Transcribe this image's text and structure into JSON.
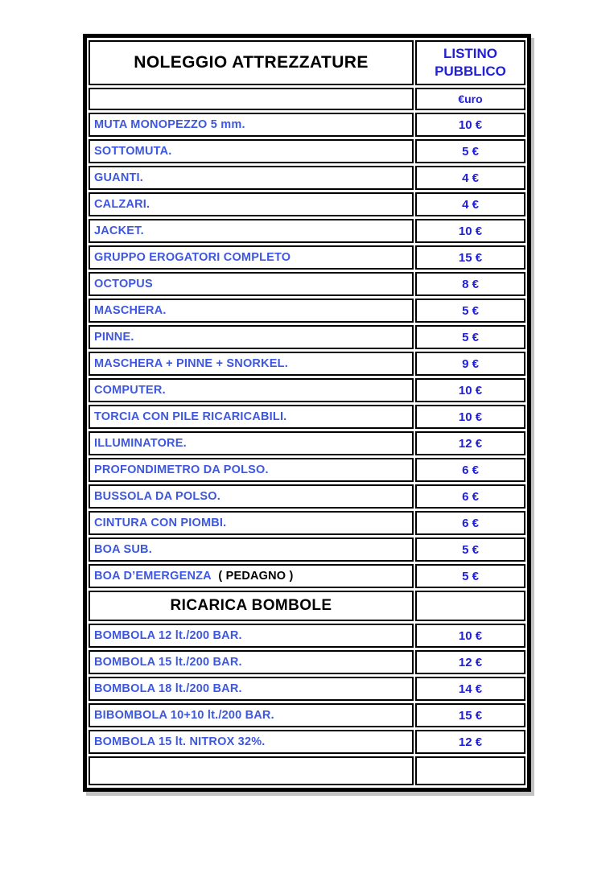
{
  "table": {
    "title": "NOLEGGIO ATTREZZATURE",
    "price_column_title": "LISTINO PUBBLICO",
    "currency_label": "€uro",
    "colors": {
      "label_blue": "#3d57de",
      "value_blue": "#1f1fd8",
      "border_black": "#000000"
    },
    "sections": [
      {
        "title": "",
        "rows": [
          {
            "label": "MUTA MONOPEZZO 5 mm.",
            "price": "10 €"
          },
          {
            "label": "SOTTOMUTA.",
            "price": "5 €"
          },
          {
            "label": "GUANTI.",
            "price": "4 €"
          },
          {
            "label": "CALZARI.",
            "price": "4 €"
          },
          {
            "label": "JACKET.",
            "price": "10 €"
          },
          {
            "label": "GRUPPO EROGATORI COMPLETO",
            "price": "15 €"
          },
          {
            "label": "OCTOPUS",
            "price": "8 €"
          },
          {
            "label": "MASCHERA.",
            "price": "5 €"
          },
          {
            "label": "PINNE.",
            "price": "5 €"
          },
          {
            "label": "MASCHERA + PINNE + SNORKEL.",
            "price": "9 €"
          },
          {
            "label": "COMPUTER.",
            "price": "10 €"
          },
          {
            "label": "TORCIA CON PILE RICARICABILI.",
            "price": "10 €"
          },
          {
            "label": "ILLUMINATORE.",
            "price": "12 €"
          },
          {
            "label": "PROFONDIMETRO DA POLSO.",
            "price": "6 €"
          },
          {
            "label": "BUSSOLA DA POLSO.",
            "price": "6 €"
          },
          {
            "label": "CINTURA CON PIOMBI.",
            "price": "6 €"
          },
          {
            "label": "BOA SUB.",
            "price": "5 €"
          },
          {
            "label": "BOA D’EMERGENZA",
            "note": "( PEDAGNO )",
            "price": "5 €"
          }
        ]
      },
      {
        "title": "RICARICA BOMBOLE",
        "rows": [
          {
            "label": "BOMBOLA 12 lt./200 BAR.",
            "price": "10 €"
          },
          {
            "label": "BOMBOLA 15 lt./200 BAR.",
            "price": "12 €"
          },
          {
            "label": "BOMBOLA 18 lt./200 BAR.",
            "price": "14 €"
          },
          {
            "label": "BIBOMBOLA 10+10 lt./200 BAR.",
            "price": "15 €"
          },
          {
            "label": "BOMBOLA 15 lt. NITROX 32%.",
            "price": "12 €"
          }
        ]
      }
    ]
  }
}
